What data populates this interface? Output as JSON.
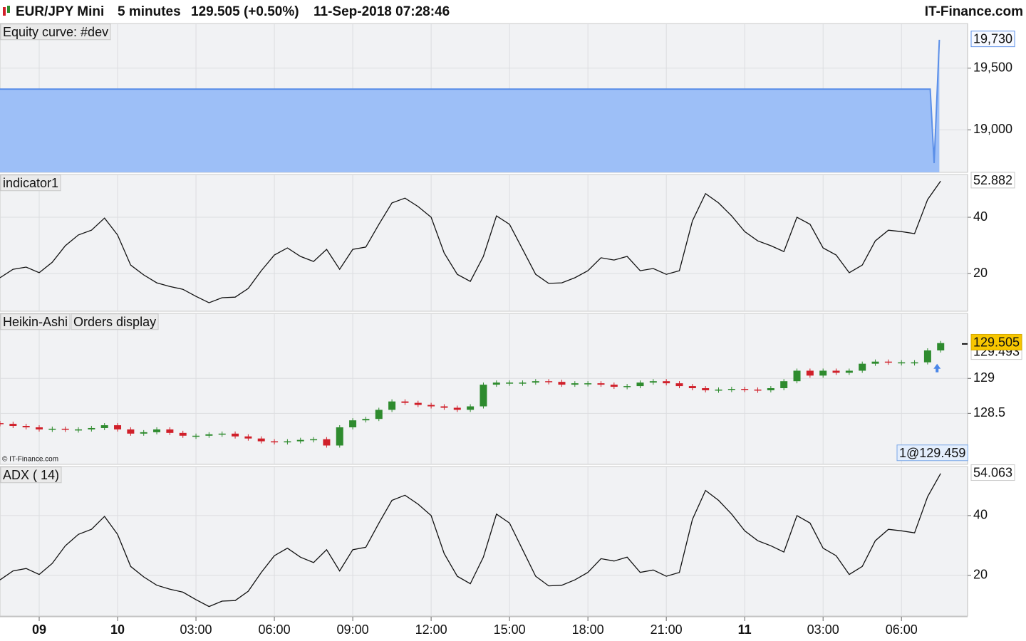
{
  "header": {
    "instrument": "EUR/JPY Mini",
    "period": "5 minutes",
    "quote": "129.505 (+0.50%)",
    "datetime": "11-Sep-2018 07:28:46",
    "brand": "IT-Finance.com"
  },
  "xaxis": {
    "xlim": [
      -1.5,
      35.53
    ],
    "xticks": [
      {
        "value": 0,
        "label": "09"
      },
      {
        "value": 3,
        "label": "10"
      },
      {
        "value": 6,
        "label": "03:00"
      },
      {
        "value": 9,
        "label": "06:00"
      },
      {
        "value": 12,
        "label": "09:00"
      },
      {
        "value": 15,
        "label": "12:00"
      },
      {
        "value": 18,
        "label": "15:00"
      },
      {
        "value": 21,
        "label": "18:00"
      },
      {
        "value": 24,
        "label": "21:00"
      },
      {
        "value": 27,
        "label": "11"
      },
      {
        "value": 30,
        "label": "03:00"
      },
      {
        "value": 33,
        "label": "06:00"
      }
    ],
    "x": [
      -1.5,
      -1,
      -0.5,
      0,
      0.5,
      1,
      1.5,
      2,
      2.5,
      3,
      3.5,
      4,
      4.5,
      5,
      5.5,
      6,
      6.5,
      7,
      7.5,
      8,
      8.5,
      9,
      9.5,
      10,
      10.5,
      11,
      11.5,
      12,
      12.5,
      13,
      13.5,
      14,
      14.5,
      15,
      15.5,
      16,
      16.5,
      17,
      17.5,
      18,
      18.5,
      19,
      19.5,
      20,
      20.5,
      21,
      21.5,
      22,
      22.5,
      23,
      23.5,
      24,
      24.5,
      25,
      25.5,
      26,
      26.5,
      27,
      27.5,
      28,
      28.5,
      29,
      29.5,
      30,
      30.5,
      31,
      31.5,
      32,
      32.5,
      33,
      33.5,
      34,
      34.5
    ]
  },
  "chart_data": [
    {
      "type": "area",
      "title": "Equity curve: #dev",
      "ylim": [
        18655,
        19862
      ],
      "yticks": [
        {
          "value": 19000,
          "label": "19,000"
        },
        {
          "value": 19500,
          "label": "19,500"
        }
      ],
      "x": [
        -1.5,
        34.1,
        34.25,
        34.45
      ],
      "values": [
        19330,
        19330,
        18730,
        19730
      ],
      "last_label": "19,730",
      "color": "#5b8fe8",
      "fill": "#9dbff7"
    },
    {
      "type": "line",
      "title": "indicator1",
      "ylim": [
        6.6,
        55.2
      ],
      "yticks": [
        20,
        40
      ],
      "color": "#111111",
      "values": [
        18.5,
        21.5,
        22.3,
        20.3,
        24,
        29.9,
        33.7,
        35.4,
        39.7,
        33.7,
        23,
        19.5,
        16.7,
        15.4,
        14.4,
        11.9,
        9.6,
        11.4,
        11.6,
        14.7,
        21,
        26.6,
        29.1,
        26.1,
        24.3,
        28.6,
        21.5,
        28.6,
        29.4,
        37.5,
        45.1,
        46.8,
        43.8,
        40,
        27.3,
        19.7,
        17.2,
        26.1,
        40.5,
        37.5,
        28.6,
        19.7,
        16.5,
        16.7,
        18.5,
        21,
        25.6,
        24.8,
        26.1,
        21,
        21.8,
        19.7,
        21,
        38.7,
        48.4,
        45.1,
        40.5,
        34.9,
        31.6,
        29.9,
        27.8,
        40,
        37.5,
        29.1,
        26.6,
        20.3,
        23,
        31.6,
        35.4,
        34.9,
        34.2,
        46.3,
        52.882
      ]
    },
    {
      "type": "candlestick",
      "title": "Heikin-Ashi",
      "subtitle": "Orders display",
      "ylim": [
        127.77,
        129.93
      ],
      "yticks": [
        128.5,
        129
      ],
      "up_color": "#2e8b2e",
      "down_color": "#d0202a",
      "marker": 129.493,
      "order_label": "1@129.459",
      "copyright": "© IT-Finance.com",
      "open": [
        128.36,
        128.35,
        128.32,
        128.3,
        128.27,
        128.28,
        128.27,
        128.27,
        128.29,
        128.33,
        128.27,
        128.21,
        128.23,
        128.27,
        128.22,
        128.18,
        128.18,
        128.2,
        128.21,
        128.17,
        128.14,
        128.1,
        128.09,
        128.1,
        128.12,
        128.13,
        128.04,
        128.3,
        128.4,
        128.42,
        128.55,
        128.67,
        128.65,
        128.62,
        128.6,
        128.58,
        128.55,
        128.6,
        128.91,
        128.94,
        128.94,
        128.94,
        128.96,
        128.95,
        128.91,
        128.93,
        128.93,
        128.91,
        128.88,
        128.89,
        128.94,
        128.96,
        128.93,
        128.89,
        128.86,
        128.83,
        128.84,
        128.85,
        128.84,
        128.83,
        128.86,
        128.96,
        129.11,
        129.04,
        129.11,
        129.08,
        129.11,
        129.21,
        129.24,
        129.23,
        129.23,
        129.23,
        129.4
      ],
      "close": [
        128.35,
        128.32,
        128.3,
        128.27,
        128.28,
        128.27,
        128.27,
        128.29,
        128.33,
        128.27,
        128.21,
        128.23,
        128.27,
        128.22,
        128.18,
        128.18,
        128.2,
        128.21,
        128.17,
        128.14,
        128.1,
        128.09,
        128.1,
        128.12,
        128.13,
        128.04,
        128.3,
        128.4,
        128.42,
        128.55,
        128.67,
        128.65,
        128.62,
        128.6,
        128.58,
        128.55,
        128.6,
        128.91,
        128.94,
        128.94,
        128.94,
        128.96,
        128.95,
        128.91,
        128.93,
        128.93,
        128.91,
        128.88,
        128.89,
        128.94,
        128.96,
        128.93,
        128.89,
        128.86,
        128.83,
        128.84,
        128.85,
        128.84,
        128.83,
        128.86,
        128.96,
        129.11,
        129.04,
        129.11,
        129.08,
        129.11,
        129.21,
        129.24,
        129.23,
        129.23,
        129.23,
        129.4,
        129.505
      ]
    },
    {
      "type": "line",
      "title": "ADX ( 14)",
      "ylim": [
        6.4,
        56.4
      ],
      "yticks": [
        20,
        40
      ],
      "color": "#111111",
      "values": [
        18.5,
        21.5,
        22.3,
        20.3,
        24,
        29.9,
        33.7,
        35.4,
        39.7,
        33.7,
        23,
        19.5,
        16.7,
        15.4,
        14.4,
        11.9,
        9.6,
        11.4,
        11.6,
        14.7,
        21,
        26.6,
        29.1,
        26.1,
        24.3,
        28.6,
        21.5,
        28.6,
        29.4,
        37.5,
        45.1,
        46.8,
        43.8,
        40,
        27.3,
        19.7,
        17.2,
        26.1,
        40.5,
        37.5,
        28.6,
        19.7,
        16.5,
        16.7,
        18.5,
        21,
        25.6,
        24.8,
        26.1,
        21,
        21.8,
        19.7,
        21,
        38.7,
        48.4,
        45.1,
        40.5,
        34.9,
        31.6,
        29.9,
        27.8,
        40,
        37.5,
        29.1,
        26.6,
        20.3,
        23,
        31.6,
        35.4,
        34.9,
        34.2,
        46.3,
        54.063
      ]
    }
  ]
}
